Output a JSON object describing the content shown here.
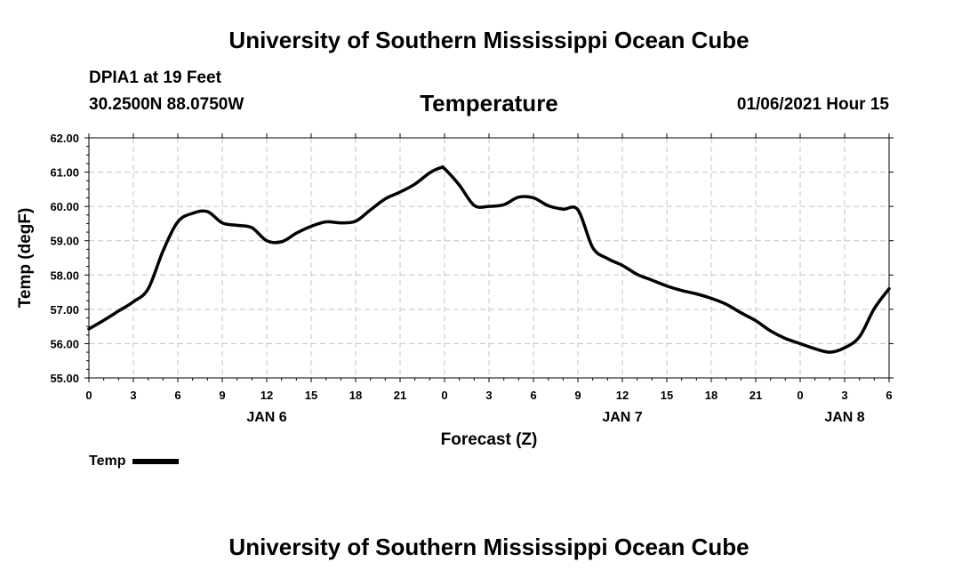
{
  "header": {
    "title": "University of Southern Mississippi Ocean Cube",
    "station": "DPIA1 at 19 Feet",
    "coordinates": "30.2500N 88.0750W",
    "parameter": "Temperature",
    "datetime": "01/06/2021 Hour 15"
  },
  "footer": {
    "title": "University of Southern Mississippi Ocean Cube"
  },
  "legend": {
    "label": "Temp"
  },
  "chart_data": {
    "type": "line",
    "title": "Temperature",
    "xlabel": "Forecast (Z)",
    "ylabel": "Temp (degF)",
    "xlim": [
      0,
      54
    ],
    "ylim": [
      55,
      62
    ],
    "grid": true,
    "legend_position": "bottom-left",
    "yticks": [
      "55.00",
      "56.00",
      "57.00",
      "58.00",
      "59.00",
      "60.00",
      "61.00",
      "62.00"
    ],
    "ytick_values": [
      55,
      56,
      57,
      58,
      59,
      60,
      61,
      62
    ],
    "xticks": [
      {
        "x": 0,
        "label": "0"
      },
      {
        "x": 3,
        "label": "3"
      },
      {
        "x": 6,
        "label": "6"
      },
      {
        "x": 9,
        "label": "9"
      },
      {
        "x": 12,
        "label": "12"
      },
      {
        "x": 15,
        "label": "15"
      },
      {
        "x": 18,
        "label": "18"
      },
      {
        "x": 21,
        "label": "21"
      },
      {
        "x": 24,
        "label": "0"
      },
      {
        "x": 27,
        "label": "3"
      },
      {
        "x": 30,
        "label": "6"
      },
      {
        "x": 33,
        "label": "9"
      },
      {
        "x": 36,
        "label": "12"
      },
      {
        "x": 39,
        "label": "15"
      },
      {
        "x": 42,
        "label": "18"
      },
      {
        "x": 45,
        "label": "21"
      },
      {
        "x": 48,
        "label": "0"
      },
      {
        "x": 51,
        "label": "3"
      },
      {
        "x": 54,
        "label": "6"
      }
    ],
    "day_labels": [
      {
        "x": 12,
        "label": "JAN 6"
      },
      {
        "x": 36,
        "label": "JAN 7"
      },
      {
        "x": 51,
        "label": "JAN 8"
      }
    ],
    "series": [
      {
        "name": "Temp",
        "color": "#000000",
        "x": [
          0,
          1,
          2,
          3,
          4,
          5,
          6,
          7,
          8,
          9,
          10,
          11,
          12,
          13,
          14,
          15,
          16,
          17,
          18,
          19,
          20,
          21,
          22,
          23,
          23.75,
          24,
          25,
          26,
          27,
          28,
          29,
          30,
          31,
          32,
          33,
          34,
          35,
          36,
          37,
          38,
          39,
          40,
          41,
          42,
          43,
          44,
          45,
          46,
          47,
          48,
          49,
          50,
          51,
          52,
          53,
          54
        ],
        "values": [
          56.43,
          56.68,
          56.95,
          57.22,
          57.6,
          58.7,
          59.55,
          59.8,
          59.85,
          59.52,
          59.45,
          59.38,
          59.0,
          58.97,
          59.22,
          59.42,
          59.55,
          59.52,
          59.57,
          59.9,
          60.22,
          60.42,
          60.65,
          60.98,
          61.13,
          61.1,
          60.62,
          60.03,
          60.0,
          60.05,
          60.27,
          60.25,
          60.02,
          59.92,
          59.9,
          58.8,
          58.48,
          58.28,
          58.02,
          57.85,
          57.68,
          57.55,
          57.45,
          57.32,
          57.15,
          56.9,
          56.67,
          56.37,
          56.15,
          56.0,
          55.85,
          55.75,
          55.88,
          56.2,
          57.02,
          57.6
        ]
      }
    ]
  }
}
